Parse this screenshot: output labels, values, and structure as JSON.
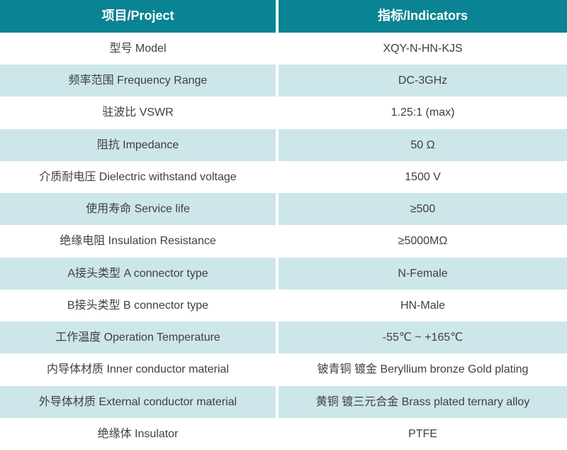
{
  "header": {
    "project": "项目/Project",
    "indicators": "指标/Indicators"
  },
  "rows": [
    {
      "project": "型号 Model",
      "indicator": "XQY-N-HN-KJS"
    },
    {
      "project": "频率范围 Frequency Range",
      "indicator": "DC-3GHz"
    },
    {
      "project": "驻波比 VSWR",
      "indicator": "1.25:1 (max)"
    },
    {
      "project": "阻抗 Impedance",
      "indicator": "50 Ω"
    },
    {
      "project": "介质耐电压 Dielectric withstand voltage",
      "indicator": "1500 V"
    },
    {
      "project": "使用寿命 Service life",
      "indicator": "≥500"
    },
    {
      "project": "绝缘电阻 Insulation Resistance",
      "indicator": "≥5000MΩ"
    },
    {
      "project": "A接头类型 A connector type",
      "indicator": "N-Female"
    },
    {
      "project": "B接头类型 B connector type",
      "indicator": "HN-Male"
    },
    {
      "project": "工作温度 Operation Temperature",
      "indicator": "-55℃ ~ +165℃"
    },
    {
      "project": "内导体材质 Inner conductor material",
      "indicator": "铍青铜 镀金 Beryllium bronze Gold plating"
    },
    {
      "project": "外导体材质 External conductor material",
      "indicator": "黄铜 镀三元合金 Brass plated ternary alloy"
    },
    {
      "project": "绝缘体 Insulator",
      "indicator": "PTFE"
    }
  ],
  "colors": {
    "header_bg": "#0a8492",
    "alt_row_bg": "#cde6e9",
    "text": "#3f3f3f",
    "header_text": "#ffffff"
  }
}
